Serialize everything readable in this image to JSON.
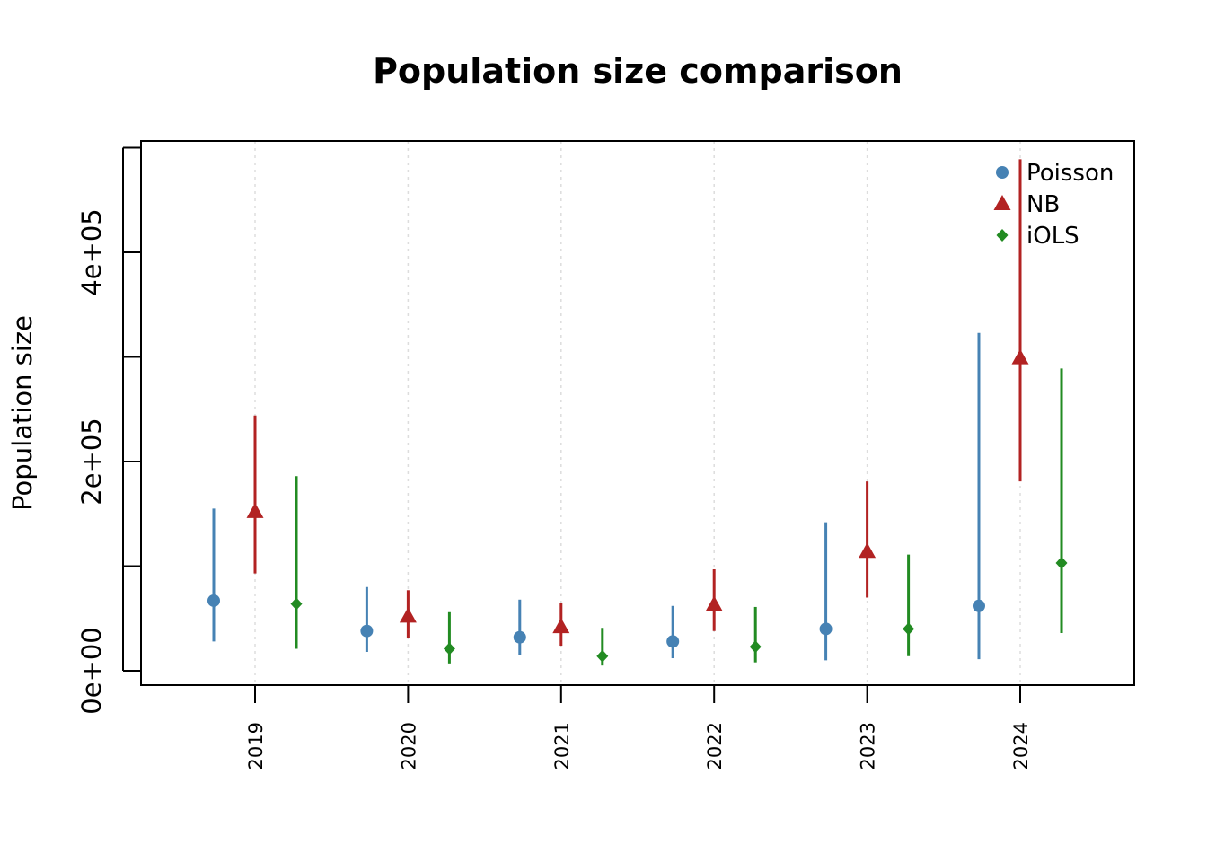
{
  "chart_data": {
    "type": "scatter",
    "title": "Population size comparison",
    "xlabel": "",
    "ylabel": "Population size",
    "categories": [
      "2019",
      "2020",
      "2021",
      "2022",
      "2023",
      "2024"
    ],
    "ylim": [
      -7000,
      505000
    ],
    "yticks": [
      0,
      100000,
      200000,
      300000,
      400000,
      500000
    ],
    "ytick_labels": {
      "0": "0e+00",
      "200000": "2e+05",
      "400000": "4e+05"
    },
    "grid": "vertical dotted at categories",
    "legend_position": "top-right",
    "series": [
      {
        "name": "Poisson",
        "color": "#4682B4",
        "marker": "circle",
        "offset": -0.27,
        "points": [
          {
            "category": "2019",
            "estimate": 67000,
            "lower": 28000,
            "upper": 155000
          },
          {
            "category": "2020",
            "estimate": 38000,
            "lower": 18000,
            "upper": 80000
          },
          {
            "category": "2021",
            "estimate": 32000,
            "lower": 15000,
            "upper": 68000
          },
          {
            "category": "2022",
            "estimate": 28000,
            "lower": 12000,
            "upper": 62000
          },
          {
            "category": "2023",
            "estimate": 40000,
            "lower": 10000,
            "upper": 142000
          },
          {
            "category": "2024",
            "estimate": 62000,
            "lower": 11000,
            "upper": 323000
          }
        ]
      },
      {
        "name": "NB",
        "color": "#B22222",
        "marker": "triangle",
        "offset": 0,
        "points": [
          {
            "category": "2019",
            "estimate": 152000,
            "lower": 93000,
            "upper": 244000
          },
          {
            "category": "2020",
            "estimate": 52000,
            "lower": 31000,
            "upper": 77000
          },
          {
            "category": "2021",
            "estimate": 42000,
            "lower": 24000,
            "upper": 65000
          },
          {
            "category": "2022",
            "estimate": 63000,
            "lower": 38000,
            "upper": 97000
          },
          {
            "category": "2023",
            "estimate": 114000,
            "lower": 70000,
            "upper": 181000
          },
          {
            "category": "2024",
            "estimate": 299000,
            "lower": 181000,
            "upper": 489000
          }
        ]
      },
      {
        "name": "iOLS",
        "color": "#228B22",
        "marker": "diamond",
        "offset": 0.27,
        "points": [
          {
            "category": "2019",
            "estimate": 64000,
            "lower": 21000,
            "upper": 186000
          },
          {
            "category": "2020",
            "estimate": 21000,
            "lower": 7000,
            "upper": 56000
          },
          {
            "category": "2021",
            "estimate": 14000,
            "lower": 5000,
            "upper": 41000
          },
          {
            "category": "2022",
            "estimate": 23000,
            "lower": 8000,
            "upper": 61000
          },
          {
            "category": "2023",
            "estimate": 40000,
            "lower": 14000,
            "upper": 111000
          },
          {
            "category": "2024",
            "estimate": 103000,
            "lower": 36000,
            "upper": 289000
          }
        ]
      }
    ]
  }
}
